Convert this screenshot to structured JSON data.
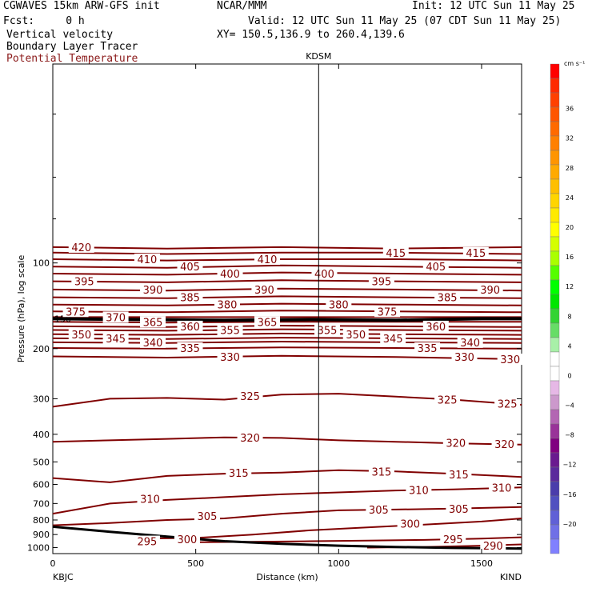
{
  "header": {
    "model": "CGWAVES 15km ARW-GFS init",
    "center": "NCAR/MMM",
    "init": "Init: 12 UTC Sun 11 May 25",
    "fcst": "Fcst:     0 h",
    "valid": "Valid: 12 UTC Sun 11 May 25 (07 CDT Sun 11 May 25)",
    "field1": "Vertical velocity",
    "field2": "Boundary Layer Tracer",
    "field3": "Potential Temperature",
    "xy": "XY= 150.5,136.9 to 260.4,139.6",
    "field3_color": "#8b1a1a"
  },
  "chart_data": {
    "type": "line",
    "title": "",
    "xlabel": "Distance (km)",
    "ylabel": "Pressure (hPa), log scale",
    "xlim": [
      0,
      1640
    ],
    "ylim": [
      1050,
      20
    ],
    "y_scale": "log",
    "x_ticks": [
      0,
      500,
      1000,
      1500
    ],
    "x_tick_labels": [
      "0",
      "500",
      "1000",
      "1500"
    ],
    "y_ticks": [
      100,
      200,
      300,
      400,
      500,
      600,
      700,
      800,
      900,
      1000
    ],
    "y_tick_labels": [
      "100",
      "200",
      "300",
      "400",
      "500",
      "600",
      "700",
      "800",
      "900",
      "1000"
    ],
    "start_station": "KBJC",
    "end_station": "KIND",
    "marker_station": "KDSM",
    "marker_x": 930,
    "trop_label": "150",
    "contour_color": "#800000",
    "trop_color": "#000000",
    "terrain_color": "#000000",
    "terrain": {
      "x": [
        0,
        200,
        400,
        600,
        800,
        1000,
        1200,
        1400,
        1640
      ],
      "p": [
        845,
        880,
        915,
        950,
        970,
        985,
        995,
        1003,
        1008
      ]
    },
    "tropopause": {
      "x": [
        0,
        300,
        600,
        900,
        1200,
        1500,
        1640
      ],
      "p": [
        157,
        158,
        159,
        158,
        159,
        157,
        157
      ]
    },
    "isentropes": [
      {
        "theta": 420,
        "x": [
          0,
          400,
          800,
          1200,
          1640
        ],
        "p": [
          88,
          89,
          88,
          89,
          88
        ]
      },
      {
        "theta": 415,
        "x": [
          0,
          400,
          800,
          1200,
          1640
        ],
        "p": [
          92,
          93,
          92,
          92,
          93
        ]
      },
      {
        "theta": 410,
        "x": [
          0,
          400,
          800,
          1200,
          1640
        ],
        "p": [
          97,
          98,
          97,
          97,
          98
        ]
      },
      {
        "theta": 405,
        "x": [
          0,
          400,
          800,
          1200,
          1640
        ],
        "p": [
          103,
          104,
          102,
          103,
          104
        ]
      },
      {
        "theta": 400,
        "x": [
          0,
          400,
          800,
          1200,
          1640
        ],
        "p": [
          109,
          110,
          108,
          109,
          110
        ]
      },
      {
        "theta": 395,
        "x": [
          0,
          400,
          800,
          1200,
          1640
        ],
        "p": [
          116,
          117,
          115,
          116,
          117
        ]
      },
      {
        "theta": 390,
        "x": [
          0,
          400,
          800,
          1200,
          1640
        ],
        "p": [
          124,
          125,
          123,
          124,
          125
        ]
      },
      {
        "theta": 385,
        "x": [
          0,
          400,
          800,
          1200,
          1640
        ],
        "p": [
          132,
          133,
          131,
          132,
          133
        ]
      },
      {
        "theta": 380,
        "x": [
          0,
          400,
          800,
          1200,
          1640
        ],
        "p": [
          140,
          141,
          139,
          140,
          141
        ]
      },
      {
        "theta": 375,
        "x": [
          0,
          400,
          800,
          1200,
          1640
        ],
        "p": [
          148,
          149,
          147,
          148,
          149
        ]
      },
      {
        "theta": 370,
        "x": [
          0,
          400,
          800,
          1200,
          1640
        ],
        "p": [
          155,
          155,
          155,
          155,
          155
        ]
      },
      {
        "theta": 365,
        "x": [
          0,
          400,
          800,
          1200,
          1640
        ],
        "p": [
          161,
          162,
          161,
          161,
          161
        ]
      },
      {
        "theta": 360,
        "x": [
          0,
          400,
          800,
          1200,
          1640
        ],
        "p": [
          167,
          168,
          166,
          167,
          168
        ]
      },
      {
        "theta": 355,
        "x": [
          0,
          400,
          800,
          1200,
          1640
        ],
        "p": [
          172,
          173,
          171,
          172,
          173
        ]
      },
      {
        "theta": 350,
        "x": [
          0,
          400,
          800,
          1200,
          1640
        ],
        "p": [
          178,
          179,
          177,
          178,
          179
        ]
      },
      {
        "theta": 345,
        "x": [
          0,
          400,
          800,
          1200,
          1640
        ],
        "p": [
          184,
          185,
          183,
          184,
          185
        ]
      },
      {
        "theta": 340,
        "x": [
          0,
          400,
          800,
          1200,
          1640
        ],
        "p": [
          190,
          191,
          189,
          190,
          191
        ]
      },
      {
        "theta": 335,
        "x": [
          0,
          400,
          800,
          1200,
          1640
        ],
        "p": [
          199,
          200,
          198,
          199,
          200
        ]
      },
      {
        "theta": 330,
        "x": [
          0,
          400,
          800,
          1200,
          1640
        ],
        "p": [
          213,
          215,
          212,
          214,
          218
        ]
      },
      {
        "theta": 325,
        "x": [
          0,
          200,
          400,
          600,
          800,
          1000,
          1200,
          1400,
          1640
        ],
        "p": [
          320,
          300,
          298,
          302,
          290,
          288,
          295,
          302,
          315
        ]
      },
      {
        "theta": 320,
        "x": [
          0,
          200,
          400,
          600,
          800,
          1000,
          1200,
          1400,
          1640
        ],
        "p": [
          425,
          420,
          415,
          410,
          412,
          420,
          425,
          430,
          435
        ]
      },
      {
        "theta": 315,
        "x": [
          0,
          200,
          400,
          600,
          800,
          1000,
          1200,
          1400,
          1640
        ],
        "p": [
          570,
          590,
          560,
          550,
          545,
          535,
          540,
          550,
          565
        ]
      },
      {
        "theta": 310,
        "x": [
          0,
          200,
          400,
          600,
          800,
          1000,
          1200,
          1400,
          1640
        ],
        "p": [
          760,
          700,
          680,
          665,
          650,
          640,
          630,
          625,
          615
        ]
      },
      {
        "theta": 305,
        "x": [
          0,
          200,
          400,
          600,
          800,
          1000,
          1200,
          1400,
          1640
        ],
        "p": [
          835,
          820,
          800,
          790,
          760,
          740,
          735,
          730,
          720
        ]
      },
      {
        "theta": 300,
        "x": [
          300,
          500,
          700,
          900,
          1100,
          1300,
          1500,
          1640
        ],
        "p": [
          930,
          925,
          900,
          870,
          850,
          830,
          810,
          790
        ]
      },
      {
        "theta": 295,
        "x": [
          500,
          700,
          900,
          1100,
          1300,
          1500,
          1640
        ],
        "p": [
          958,
          955,
          950,
          945,
          940,
          930,
          920
        ]
      },
      {
        "theta": 290,
        "x": [
          1100,
          1300,
          1500,
          1640
        ],
        "p": [
          1000,
          995,
          985,
          975
        ]
      }
    ],
    "contour_labels": [
      {
        "text": "420",
        "x": 100,
        "p": 88
      },
      {
        "text": "410",
        "x": 330,
        "p": 97
      },
      {
        "text": "405",
        "x": 480,
        "p": 103
      },
      {
        "text": "400",
        "x": 620,
        "p": 109
      },
      {
        "text": "410",
        "x": 750,
        "p": 97
      },
      {
        "text": "415",
        "x": 1200,
        "p": 92
      },
      {
        "text": "405",
        "x": 1340,
        "p": 103
      },
      {
        "text": "415",
        "x": 1480,
        "p": 92
      },
      {
        "text": "400",
        "x": 950,
        "p": 109
      },
      {
        "text": "395",
        "x": 110,
        "p": 116
      },
      {
        "text": "390",
        "x": 350,
        "p": 124
      },
      {
        "text": "385",
        "x": 480,
        "p": 132
      },
      {
        "text": "390",
        "x": 740,
        "p": 124
      },
      {
        "text": "395",
        "x": 1150,
        "p": 116
      },
      {
        "text": "385",
        "x": 1380,
        "p": 132
      },
      {
        "text": "390",
        "x": 1530,
        "p": 124
      },
      {
        "text": "375",
        "x": 80,
        "p": 148
      },
      {
        "text": "370",
        "x": 220,
        "p": 155
      },
      {
        "text": "380",
        "x": 610,
        "p": 140
      },
      {
        "text": "380",
        "x": 1000,
        "p": 140
      },
      {
        "text": "375",
        "x": 1170,
        "p": 148
      },
      {
        "text": "365",
        "x": 350,
        "p": 161
      },
      {
        "text": "360",
        "x": 480,
        "p": 167
      },
      {
        "text": "355",
        "x": 620,
        "p": 172
      },
      {
        "text": "365",
        "x": 750,
        "p": 161
      },
      {
        "text": "355",
        "x": 960,
        "p": 172
      },
      {
        "text": "360",
        "x": 1340,
        "p": 167
      },
      {
        "text": "350",
        "x": 100,
        "p": 178
      },
      {
        "text": "345",
        "x": 220,
        "p": 184
      },
      {
        "text": "340",
        "x": 350,
        "p": 190
      },
      {
        "text": "335",
        "x": 480,
        "p": 199
      },
      {
        "text": "350",
        "x": 1060,
        "p": 178
      },
      {
        "text": "345",
        "x": 1190,
        "p": 184
      },
      {
        "text": "340",
        "x": 1460,
        "p": 190
      },
      {
        "text": "335",
        "x": 1310,
        "p": 199
      },
      {
        "text": "330",
        "x": 620,
        "p": 214
      },
      {
        "text": "330",
        "x": 1440,
        "p": 214
      },
      {
        "text": "330",
        "x": 1600,
        "p": 218
      },
      {
        "text": "325",
        "x": 690,
        "p": 293
      },
      {
        "text": "325",
        "x": 1380,
        "p": 302
      },
      {
        "text": "325",
        "x": 1590,
        "p": 312
      },
      {
        "text": "320",
        "x": 690,
        "p": 411
      },
      {
        "text": "320",
        "x": 1410,
        "p": 428
      },
      {
        "text": "320",
        "x": 1580,
        "p": 433
      },
      {
        "text": "315",
        "x": 650,
        "p": 547
      },
      {
        "text": "315",
        "x": 1150,
        "p": 540
      },
      {
        "text": "315",
        "x": 1420,
        "p": 553
      },
      {
        "text": "310",
        "x": 340,
        "p": 675
      },
      {
        "text": "310",
        "x": 1280,
        "p": 628
      },
      {
        "text": "310",
        "x": 1570,
        "p": 616
      },
      {
        "text": "305",
        "x": 540,
        "p": 775
      },
      {
        "text": "305",
        "x": 1140,
        "p": 736
      },
      {
        "text": "305",
        "x": 1420,
        "p": 730
      },
      {
        "text": "300",
        "x": 1250,
        "p": 825
      },
      {
        "text": "295",
        "x": 330,
        "p": 950
      },
      {
        "text": "300",
        "x": 470,
        "p": 935
      },
      {
        "text": "295",
        "x": 1400,
        "p": 935
      },
      {
        "text": "290",
        "x": 1540,
        "p": 985
      }
    ],
    "colorbar": {
      "unit": "cm s⁻¹",
      "colors": [
        "#ff0000",
        "#ff2a00",
        "#ff4000",
        "#ff5500",
        "#ff6a00",
        "#ff8000",
        "#ff9500",
        "#ffaa00",
        "#ffbf00",
        "#ffd500",
        "#ffea00",
        "#ffff00",
        "#d5ff00",
        "#aaff00",
        "#55ff00",
        "#00ff00",
        "#00e600",
        "#33d433",
        "#66dd66",
        "#a8f0a8",
        "#ffffff",
        "#ffffff",
        "#e6b8e6",
        "#cc99cc",
        "#b366b3",
        "#993399",
        "#800080",
        "#6a1a8f",
        "#5b2a9c",
        "#4a3dab",
        "#5050c0",
        "#6060d6",
        "#7070e6",
        "#8080ff"
      ],
      "labels": [
        "36",
        "32",
        "28",
        "24",
        "20",
        "16",
        "12",
        "8",
        "4",
        "0",
        "−4",
        "−8",
        "−12",
        "−16",
        "−20"
      ]
    }
  }
}
